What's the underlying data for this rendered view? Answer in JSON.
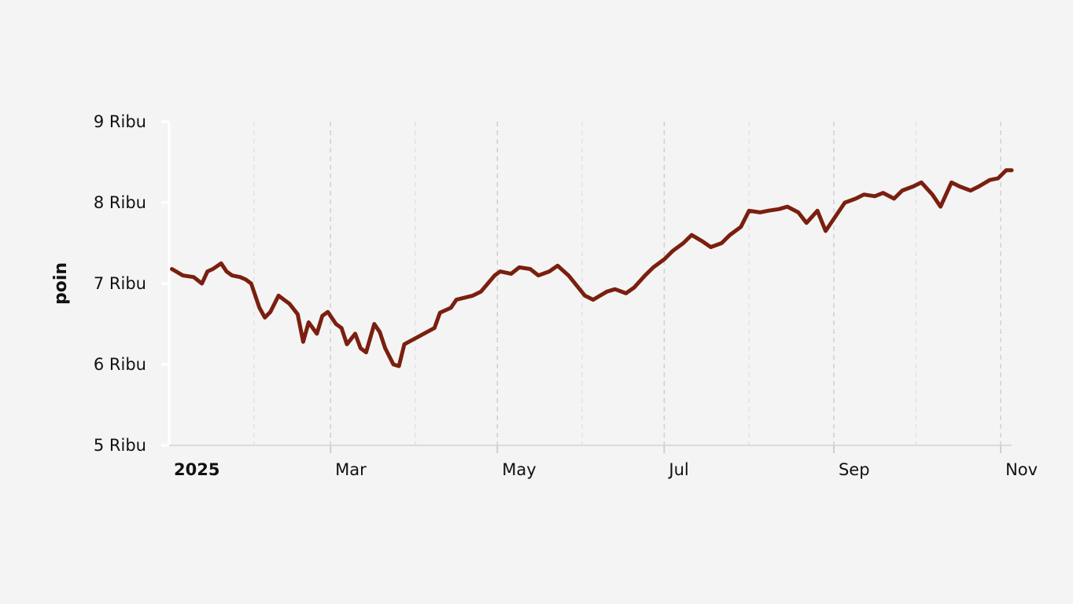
{
  "chart_data": {
    "type": "line",
    "ylabel": "poin",
    "xlabel": "",
    "title": "",
    "ylim": [
      5000,
      9000
    ],
    "xlim": [
      "2025-01-01",
      "2025-11-05"
    ],
    "y_ticks": [
      {
        "value": 9000,
        "label": "9 Ribu"
      },
      {
        "value": 8000,
        "label": "8 Ribu"
      },
      {
        "value": 7000,
        "label": "7 Ribu"
      },
      {
        "value": 6000,
        "label": "6 Ribu"
      },
      {
        "value": 5000,
        "label": "5 Ribu"
      }
    ],
    "x_ticks": [
      {
        "date": "2025-01-01",
        "label": "2025",
        "bold": true
      },
      {
        "date": "2025-03-01",
        "label": "Mar",
        "bold": false
      },
      {
        "date": "2025-05-01",
        "label": "May",
        "bold": false
      },
      {
        "date": "2025-07-01",
        "label": "Jul",
        "bold": false
      },
      {
        "date": "2025-09-01",
        "label": "Sep",
        "bold": false
      },
      {
        "date": "2025-11-01",
        "label": "Nov",
        "bold": false
      }
    ],
    "minor_gridlines": [
      "2025-02-01",
      "2025-04-01",
      "2025-06-01",
      "2025-08-01",
      "2025-10-01"
    ],
    "grid": true,
    "line_color": "#7a1f10",
    "series": [
      {
        "x": [
          "2025-01-02",
          "2025-01-06",
          "2025-01-08",
          "2025-01-10",
          "2025-01-13",
          "2025-01-15",
          "2025-01-17",
          "2025-01-20",
          "2025-01-22",
          "2025-01-24",
          "2025-01-27",
          "2025-01-29",
          "2025-01-31",
          "2025-02-03",
          "2025-02-05",
          "2025-02-07",
          "2025-02-10",
          "2025-02-12",
          "2025-02-14",
          "2025-02-17",
          "2025-02-19",
          "2025-02-21",
          "2025-02-24",
          "2025-02-26",
          "2025-02-28",
          "2025-03-03",
          "2025-03-05",
          "2025-03-07",
          "2025-03-10",
          "2025-03-12",
          "2025-03-14",
          "2025-03-17",
          "2025-03-19",
          "2025-03-21",
          "2025-03-24",
          "2025-03-26",
          "2025-03-28",
          "2025-04-08",
          "2025-04-10",
          "2025-04-14",
          "2025-04-16",
          "2025-04-22",
          "2025-04-25",
          "2025-04-30",
          "2025-05-02",
          "2025-05-06",
          "2025-05-09",
          "2025-05-13",
          "2025-05-16",
          "2025-05-20",
          "2025-05-23",
          "2025-05-27",
          "2025-06-02",
          "2025-06-05",
          "2025-06-10",
          "2025-06-13",
          "2025-06-17",
          "2025-06-20",
          "2025-06-24",
          "2025-06-27",
          "2025-07-01",
          "2025-07-04",
          "2025-07-08",
          "2025-07-11",
          "2025-07-15",
          "2025-07-18",
          "2025-07-22",
          "2025-07-25",
          "2025-07-29",
          "2025-08-01",
          "2025-08-05",
          "2025-08-08",
          "2025-08-12",
          "2025-08-15",
          "2025-08-19",
          "2025-08-22",
          "2025-08-26",
          "2025-08-29",
          "2025-09-02",
          "2025-09-05",
          "2025-09-09",
          "2025-09-12",
          "2025-09-16",
          "2025-09-19",
          "2025-09-23",
          "2025-09-26",
          "2025-09-30",
          "2025-10-03",
          "2025-10-07",
          "2025-10-10",
          "2025-10-14",
          "2025-10-17",
          "2025-10-21",
          "2025-10-24",
          "2025-10-28",
          "2025-10-31",
          "2025-11-03",
          "2025-11-05"
        ],
        "values": [
          7180,
          7100,
          7090,
          7080,
          7000,
          7150,
          7180,
          7250,
          7150,
          7100,
          7080,
          7050,
          7000,
          6700,
          6580,
          6650,
          6850,
          6800,
          6750,
          6620,
          6280,
          6520,
          6380,
          6600,
          6650,
          6500,
          6450,
          6250,
          6380,
          6200,
          6150,
          6500,
          6400,
          6200,
          6000,
          5980,
          6250,
          6450,
          6640,
          6700,
          6800,
          6850,
          6900,
          7100,
          7150,
          7120,
          7200,
          7180,
          7100,
          7150,
          7220,
          7100,
          6850,
          6800,
          6900,
          6930,
          6880,
          6950,
          7100,
          7200,
          7300,
          7400,
          7500,
          7600,
          7520,
          7450,
          7500,
          7600,
          7700,
          7900,
          7880,
          7900,
          7920,
          7950,
          7880,
          7750,
          7900,
          7650,
          7850,
          8000,
          8050,
          8100,
          8080,
          8120,
          8050,
          8150,
          8200,
          8250,
          8100,
          7950,
          8250,
          8200,
          8150,
          8200,
          8280,
          8300,
          8400,
          8400
        ]
      }
    ]
  }
}
